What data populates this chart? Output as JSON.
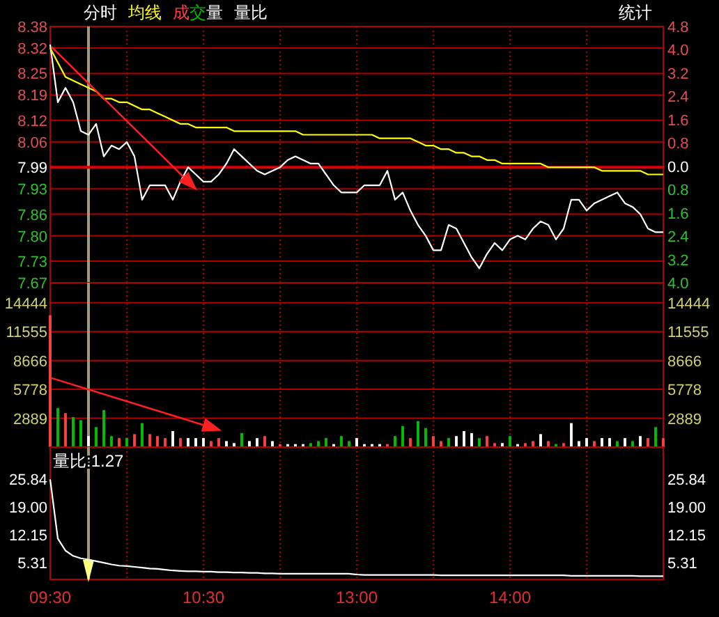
{
  "chart_data": [
    {
      "type": "line",
      "categories": [
        null,
        null,
        null,
        null,
        null,
        null,
        null,
        null,
        null,
        null,
        null,
        null,
        null,
        null,
        null,
        null,
        null,
        null,
        null,
        null,
        null,
        null,
        null,
        null,
        null,
        null,
        null,
        null,
        null,
        null,
        null,
        null,
        null,
        null,
        null,
        null,
        null,
        null,
        null,
        null,
        null,
        null,
        null,
        null,
        null,
        null,
        null,
        null,
        null,
        null,
        null,
        null,
        null,
        null,
        null,
        null,
        null,
        null,
        null,
        null,
        null,
        null,
        null,
        null,
        null,
        null,
        null,
        null,
        null,
        null,
        null,
        null,
        null,
        null,
        null,
        null,
        null,
        null,
        null,
        null,
        null
      ],
      "ylim": [
        7.67,
        8.38
      ],
      "yticks": [
        8.38,
        8.32,
        8.25,
        8.19,
        8.12,
        8.06,
        7.99,
        7.93,
        7.86,
        {
          "value": 7.8,
          "label": "7.80"
        },
        7.73,
        7.67
      ],
      "y2lim": [
        -4.0,
        4.8
      ],
      "y2ticks": [
        {
          "value": 4.8,
          "label": "4.8"
        },
        {
          "value": 4.0,
          "label": "4.0"
        },
        {
          "value": 3.2,
          "label": "3.2"
        },
        {
          "value": 2.4,
          "label": "2.4"
        },
        {
          "value": 1.6,
          "label": "1.6"
        },
        {
          "value": 0.8,
          "label": "0.8"
        },
        {
          "value": 0,
          "label": "0.0"
        },
        {
          "value": -0.8,
          "label": "0.8"
        },
        {
          "value": -1.6,
          "label": "1.6"
        },
        {
          "value": -2.4,
          "label": "2.4"
        },
        {
          "value": -3.2,
          "label": "3.2"
        },
        {
          "value": -4.0,
          "label": "4.0"
        }
      ],
      "tick_labels": "y",
      "grid": true,
      "legend": "top left",
      "ref_lines": [
        {
          "axis": "y",
          "value": 7.99,
          "color": "#e00000"
        }
      ],
      "annotations": [
        "统计"
      ],
      "series": [
        {
          "name": "分时",
          "color": "#ffffff",
          "values": [
            8.33,
            8.17,
            8.21,
            8.17,
            8.09,
            8.08,
            8.11,
            8.02,
            8.05,
            8.04,
            8.06,
            8.02,
            7.9,
            7.94,
            7.94,
            7.94,
            7.9,
            7.95,
            7.99,
            7.97,
            7.95,
            7.95,
            7.97,
            8.0,
            8.04,
            8.02,
            8.0,
            7.98,
            7.97,
            7.98,
            7.99,
            8.01,
            8.02,
            8.01,
            8.0,
            8.0,
            7.97,
            7.94,
            7.92,
            7.92,
            7.92,
            7.94,
            7.94,
            7.94,
            7.98,
            7.9,
            7.92,
            7.87,
            7.83,
            7.8,
            7.76,
            7.76,
            7.83,
            7.82,
            7.78,
            7.74,
            7.71,
            7.75,
            7.78,
            7.76,
            7.79,
            7.8,
            7.79,
            7.82,
            7.84,
            7.83,
            7.79,
            7.82,
            7.9,
            7.9,
            7.87,
            7.89,
            7.9,
            7.91,
            7.92,
            7.89,
            7.88,
            7.86,
            7.82,
            7.81,
            7.81
          ]
        },
        {
          "name": "均线",
          "color": "#ffff00",
          "values": [
            8.32,
            8.28,
            8.24,
            8.23,
            8.22,
            8.21,
            8.2,
            8.18,
            8.18,
            8.17,
            8.17,
            8.16,
            8.15,
            8.15,
            8.14,
            8.13,
            8.12,
            8.11,
            8.11,
            8.1,
            8.1,
            8.1,
            8.1,
            8.1,
            8.09,
            8.09,
            8.09,
            8.09,
            8.09,
            8.09,
            8.09,
            8.09,
            8.09,
            8.08,
            8.08,
            8.08,
            8.08,
            8.08,
            8.08,
            8.08,
            8.08,
            8.08,
            8.08,
            8.07,
            8.07,
            8.07,
            8.07,
            8.07,
            8.06,
            8.05,
            8.05,
            8.04,
            8.04,
            8.03,
            8.03,
            8.02,
            8.02,
            8.01,
            8.01,
            8.0,
            8.0,
            8.0,
            8.0,
            8.0,
            8.0,
            7.99,
            7.99,
            7.99,
            7.99,
            7.99,
            7.99,
            7.99,
            7.98,
            7.98,
            7.98,
            7.98,
            7.98,
            7.98,
            7.97,
            7.97,
            7.97
          ]
        }
      ]
    },
    {
      "type": "bar",
      "categories": [
        null,
        null,
        null,
        null,
        null,
        null,
        null,
        null,
        null,
        null,
        null,
        null,
        null,
        null,
        null,
        null,
        null,
        null,
        null,
        null,
        null,
        null,
        null,
        null,
        null,
        null,
        null,
        null,
        null,
        null,
        null,
        null,
        null,
        null,
        null,
        null,
        null,
        null,
        null,
        null,
        null,
        null,
        null,
        null,
        null,
        null,
        null,
        null,
        null,
        null,
        null,
        null,
        null,
        null,
        null,
        null,
        null,
        null,
        null,
        null,
        null,
        null,
        null,
        null,
        null,
        null,
        null,
        null,
        null,
        null,
        null,
        null,
        null,
        null,
        null,
        null,
        null,
        null,
        null,
        null,
        null
      ],
      "ylim": [
        0,
        16450
      ],
      "yticks": [
        2889,
        5778,
        8666,
        11555,
        14444
      ],
      "y2lim": [
        0,
        16450
      ],
      "y2ticks": [
        2889,
        5778,
        8666,
        11555,
        14444
      ],
      "tick_labels": "y",
      "grid": true,
      "legend": "top left",
      "series": [
        {
          "name": "成交量",
          "values": [
            13200,
            3900,
            3400,
            3000,
            2700,
            1100,
            2000,
            3700,
            1100,
            900,
            900,
            1300,
            2400,
            1300,
            1100,
            900,
            1600,
            900,
            900,
            900,
            900,
            600,
            900,
            600,
            400,
            1400,
            600,
            900,
            1100,
            600,
            300,
            300,
            300,
            300,
            400,
            600,
            900,
            300,
            1100,
            600,
            900,
            300,
            300,
            300,
            300,
            1100,
            2100,
            900,
            2600,
            1900,
            1100,
            600,
            900,
            1100,
            1600,
            1400,
            900,
            1100,
            400,
            400,
            1100,
            300,
            400,
            600,
            1300,
            600,
            300,
            400,
            2400,
            600,
            900,
            600,
            900,
            900,
            600,
            900,
            600,
            1100,
            900,
            2000,
            900
          ],
          "colors": [
            "#ff4040",
            "#00c000",
            "#ff4040",
            "#00c000",
            "#00c000",
            "#ffffff",
            "#00c000",
            "#00c000",
            "#00c000",
            "#ff4040",
            "#00c000",
            "#ff4040",
            "#00c000",
            "#ff4040",
            "#ff4040",
            "#ff4040",
            "#ffffff",
            "#ff4040",
            "#ffffff",
            "#ffffff",
            "#ffffff",
            "#ff4040",
            "#ff4040",
            "#ffffff",
            "#ffffff",
            "#00c000",
            "#ffffff",
            "#ffffff",
            "#ff4040",
            "#ffffff",
            "#ff4040",
            "#ffffff",
            "#ffffff",
            "#ffffff",
            "#00c000",
            "#00c000",
            "#00c000",
            "#ffffff",
            "#00c000",
            "#00c000",
            "#ffffff",
            "#ffffff",
            "#ffffff",
            "#ffffff",
            "#ff4040",
            "#00c000",
            "#00c000",
            "#ff4040",
            "#00c000",
            "#00c000",
            "#ff4040",
            "#ff4040",
            "#00c000",
            "#ffffff",
            "#ffffff",
            "#ffffff",
            "#00c000",
            "#ff4040",
            "#ff4040",
            "#ffffff",
            "#00c000",
            "#ffffff",
            "#ff4040",
            "#ff4040",
            "#ffffff",
            "#ff4040",
            "#00c000",
            "#ff4040",
            "#ffffff",
            "#ffffff",
            "#ffffff",
            "#ff4040",
            "#ffffff",
            "#ffffff",
            "#00c000",
            "#ffffff",
            "#00c000",
            "#ffffff",
            "#ff4040",
            "#00c000",
            "#ff4040"
          ]
        }
      ]
    },
    {
      "type": "line",
      "title": "量比:1.27",
      "categories": [
        "09:30",
        null,
        null,
        null,
        null,
        null,
        null,
        null,
        null,
        null,
        null,
        null,
        null,
        null,
        null,
        null,
        null,
        null,
        null,
        null,
        "10:30",
        null,
        null,
        null,
        null,
        null,
        null,
        null,
        null,
        null,
        null,
        null,
        null,
        null,
        null,
        null,
        null,
        null,
        null,
        null,
        "13:00",
        null,
        null,
        null,
        null,
        null,
        null,
        null,
        null,
        null,
        null,
        null,
        null,
        null,
        null,
        null,
        null,
        null,
        null,
        null,
        "14:00",
        null,
        null,
        null,
        null,
        null,
        null,
        null,
        null,
        null,
        null,
        null,
        null,
        null,
        null,
        null,
        null,
        null,
        null,
        null,
        null
      ],
      "ylim": [
        1.1,
        33.8
      ],
      "yticks": [
        25.84,
        {
          "value": 19,
          "label": "19.00"
        },
        12.15,
        5.31
      ],
      "y2lim": [
        1.1,
        33.8
      ],
      "y2ticks": [
        25.84,
        {
          "value": 19,
          "label": "19.00"
        },
        12.15,
        5.31
      ],
      "grid": "x",
      "legend": "top left",
      "series": [
        {
          "name": "量比",
          "color": "#ffffff",
          "values": [
            25.8,
            11.2,
            8.2,
            6.9,
            6.3,
            6.0,
            5.6,
            5.2,
            4.8,
            4.5,
            4.4,
            4.2,
            4.0,
            3.8,
            3.7,
            3.5,
            3.3,
            3.2,
            3.1,
            3.1,
            3.0,
            3.0,
            2.9,
            2.9,
            2.8,
            2.8,
            2.7,
            2.7,
            2.6,
            2.6,
            2.5,
            2.5,
            2.5,
            2.5,
            2.5,
            2.5,
            2.5,
            2.5,
            2.5,
            2.5,
            2.3,
            2.2,
            2.2,
            2.2,
            2.2,
            2.2,
            2.2,
            2.2,
            2.2,
            2.2,
            2.2,
            2.1,
            2.1,
            2.1,
            2.1,
            2.1,
            2.1,
            2.1,
            2.1,
            2.1,
            2.1,
            2.1,
            2.1,
            2.1,
            2.1,
            2.1,
            2.1,
            2.1,
            2.0,
            2.0,
            2.0,
            2.0,
            2.0,
            2.0,
            2.0,
            2.0,
            2.0,
            1.9,
            1.9,
            1.9,
            1.9
          ]
        }
      ]
    }
  ]
}
